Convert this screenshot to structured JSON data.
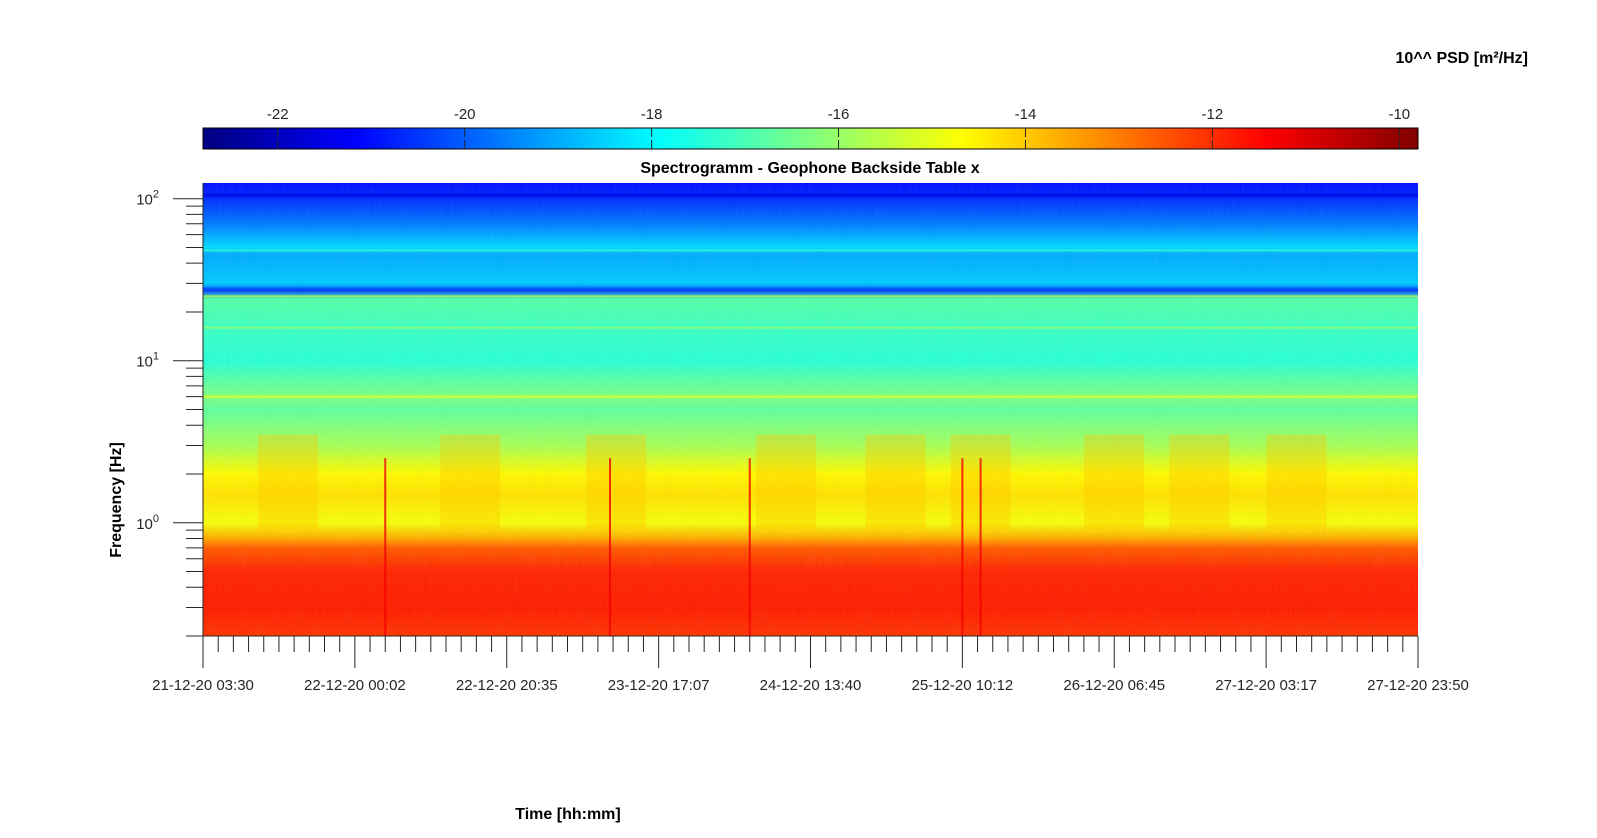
{
  "chart_data": {
    "type": "heatmap",
    "title": "Spectrogramm - Geophone Backside Table x",
    "xlabel": "Time [hh:mm]",
    "ylabel": "Frequency [Hz]",
    "x_tick_labels": [
      "21-12-20 03:30",
      "22-12-20 00:02",
      "22-12-20 20:35",
      "23-12-20 17:07",
      "24-12-20 13:40",
      "25-12-20 10:12",
      "26-12-20 06:45",
      "27-12-20 03:17",
      "27-12-20 23:50"
    ],
    "x_range": [
      "21-12-20 03:30",
      "27-12-20 23:50"
    ],
    "y_scale": "log",
    "y_range": [
      0.2,
      125
    ],
    "y_tick_values": [
      1,
      10,
      100
    ],
    "y_tick_labels": [
      {
        "base": "10",
        "exp": "0"
      },
      {
        "base": "10",
        "exp": "1"
      },
      {
        "base": "10",
        "exp": "2"
      }
    ],
    "colorbar": {
      "label": "10^^ PSD [m²/Hz]",
      "colormap": "jet",
      "range": [
        -22.8,
        -9.8
      ],
      "tick_values": [
        -22,
        -20,
        -18,
        -16,
        -14,
        -12,
        -10
      ],
      "tick_labels": [
        "-22",
        "-20",
        "-18",
        "-16",
        "-14",
        "-12",
        "-10"
      ],
      "placement": "top"
    },
    "log_psd_profile": {
      "frequency_hz": [
        125,
        100,
        70,
        50,
        45,
        30,
        27,
        24,
        15,
        10,
        6,
        5,
        3,
        2,
        1.5,
        1,
        0.8,
        0.7,
        0.5,
        0.3,
        0.2
      ],
      "value": [
        -21.0,
        -20.6,
        -19.6,
        -18.4,
        -19.0,
        -18.6,
        -20.2,
        -16.8,
        -17.2,
        -17.4,
        -16.3,
        -16.7,
        -15.8,
        -14.6,
        -14.3,
        -14.8,
        -13.6,
        -12.6,
        -11.9,
        -11.8,
        -12.1
      ]
    }
  }
}
